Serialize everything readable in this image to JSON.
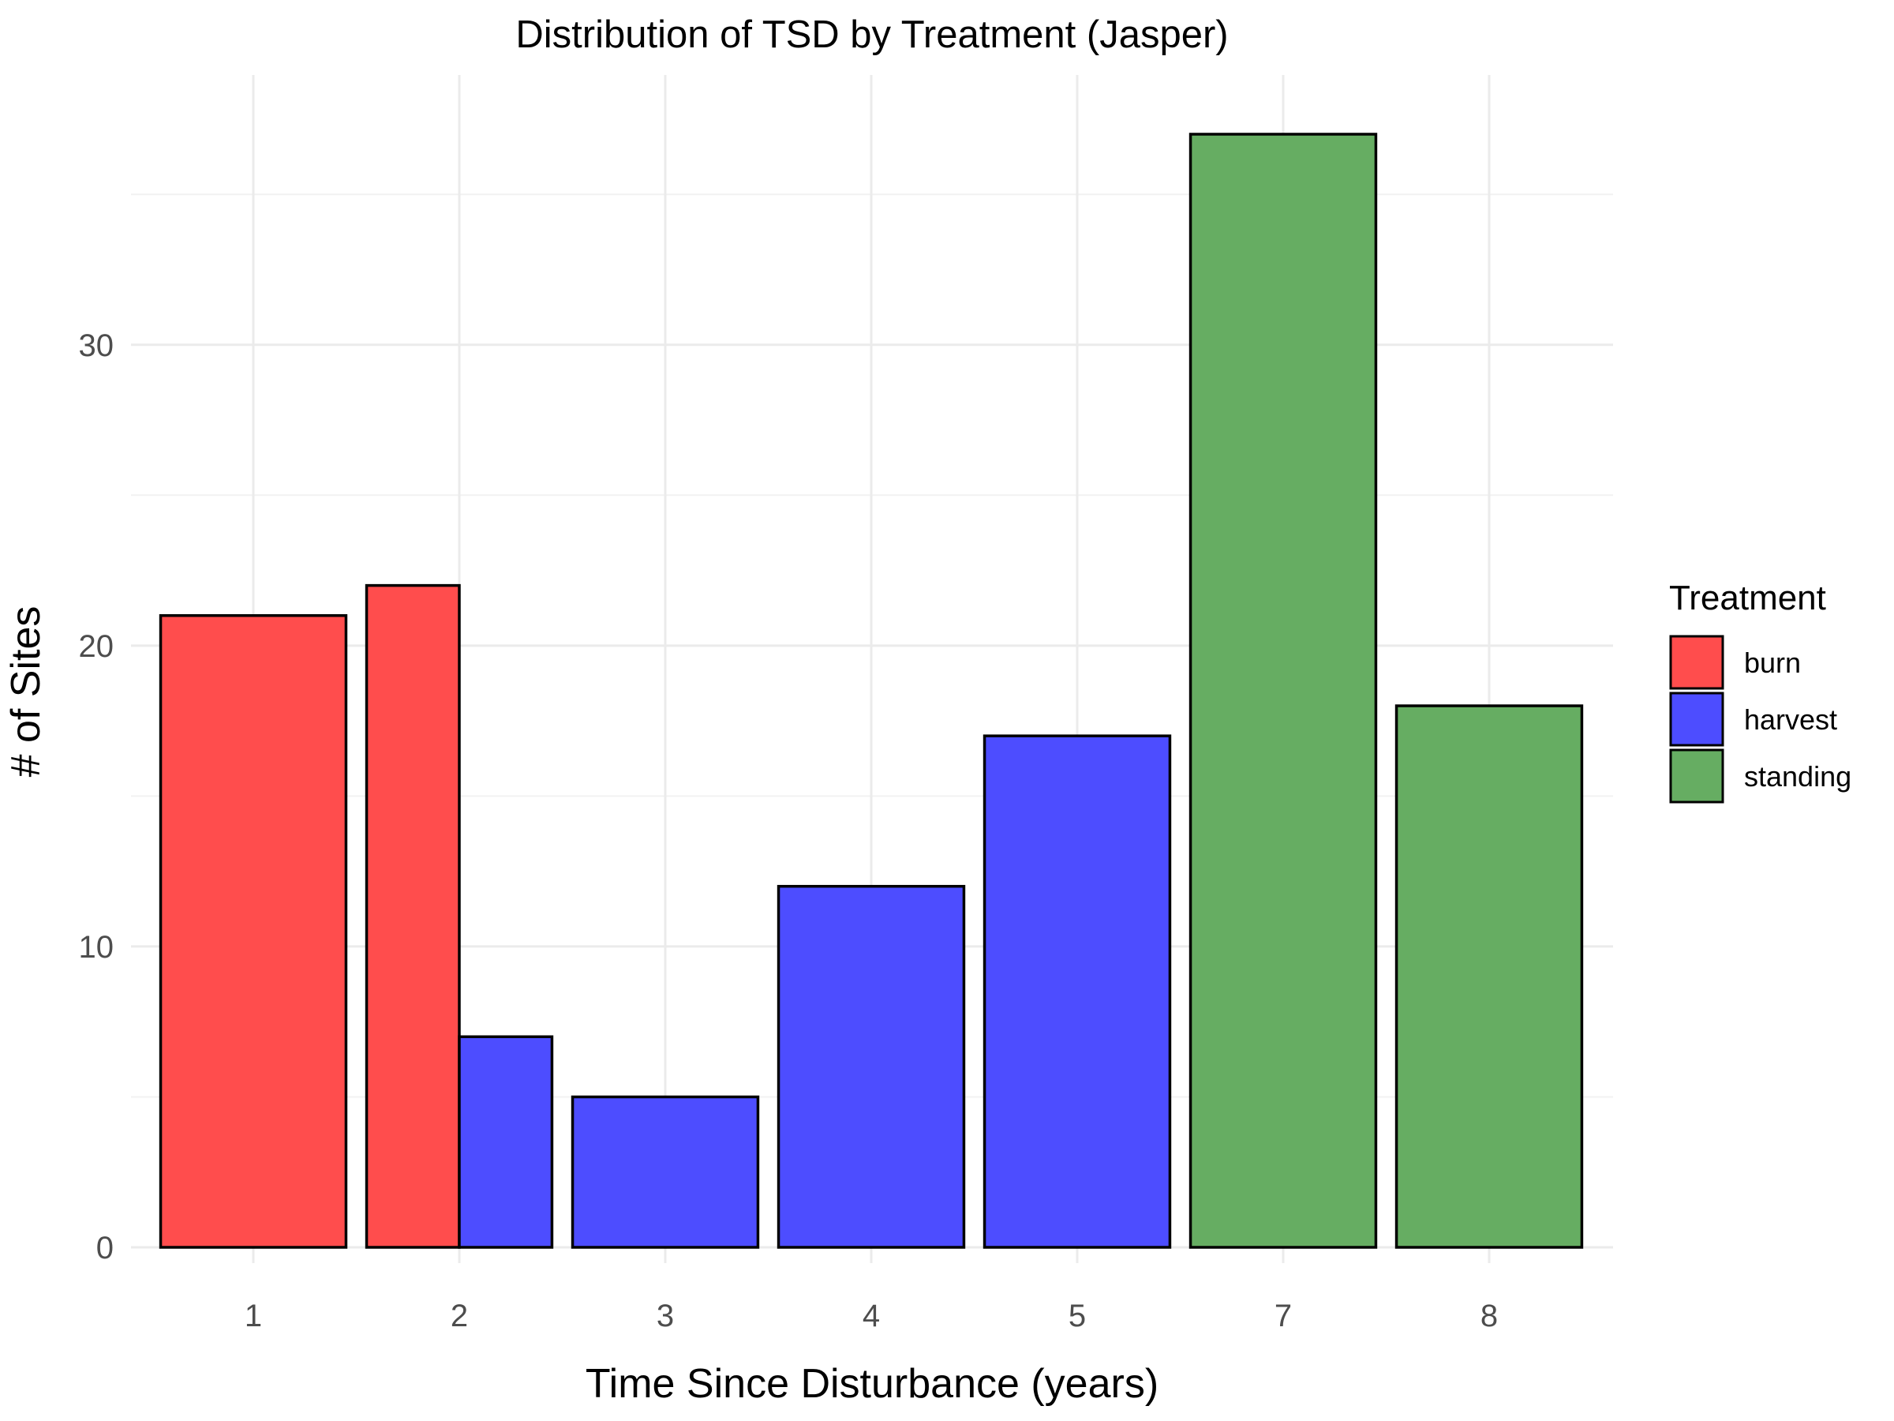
{
  "chart_data": {
    "type": "bar",
    "stacked": true,
    "title": "Distribution of TSD by Treatment (Jasper)",
    "xlabel": "Time Since Disturbance (years)",
    "ylabel": "# of Sites",
    "categories": [
      "1",
      "2",
      "3",
      "4",
      "5",
      "7",
      "8"
    ],
    "ylim": [
      0,
      37
    ],
    "yticks": [
      0,
      10,
      20,
      30
    ],
    "grid": true,
    "legend": {
      "title": "Treatment",
      "placement": "right"
    },
    "series": [
      {
        "name": "burn",
        "color": "#ff4d4d",
        "values": [
          21,
          22,
          0,
          0,
          0,
          0,
          0
        ]
      },
      {
        "name": "harvest",
        "color": "#4d4dff",
        "values": [
          0,
          7,
          5,
          12,
          17,
          0,
          0
        ]
      },
      {
        "name": "standing",
        "color": "#66ad62",
        "values": [
          0,
          0,
          0,
          0,
          0,
          37,
          18
        ]
      }
    ]
  }
}
